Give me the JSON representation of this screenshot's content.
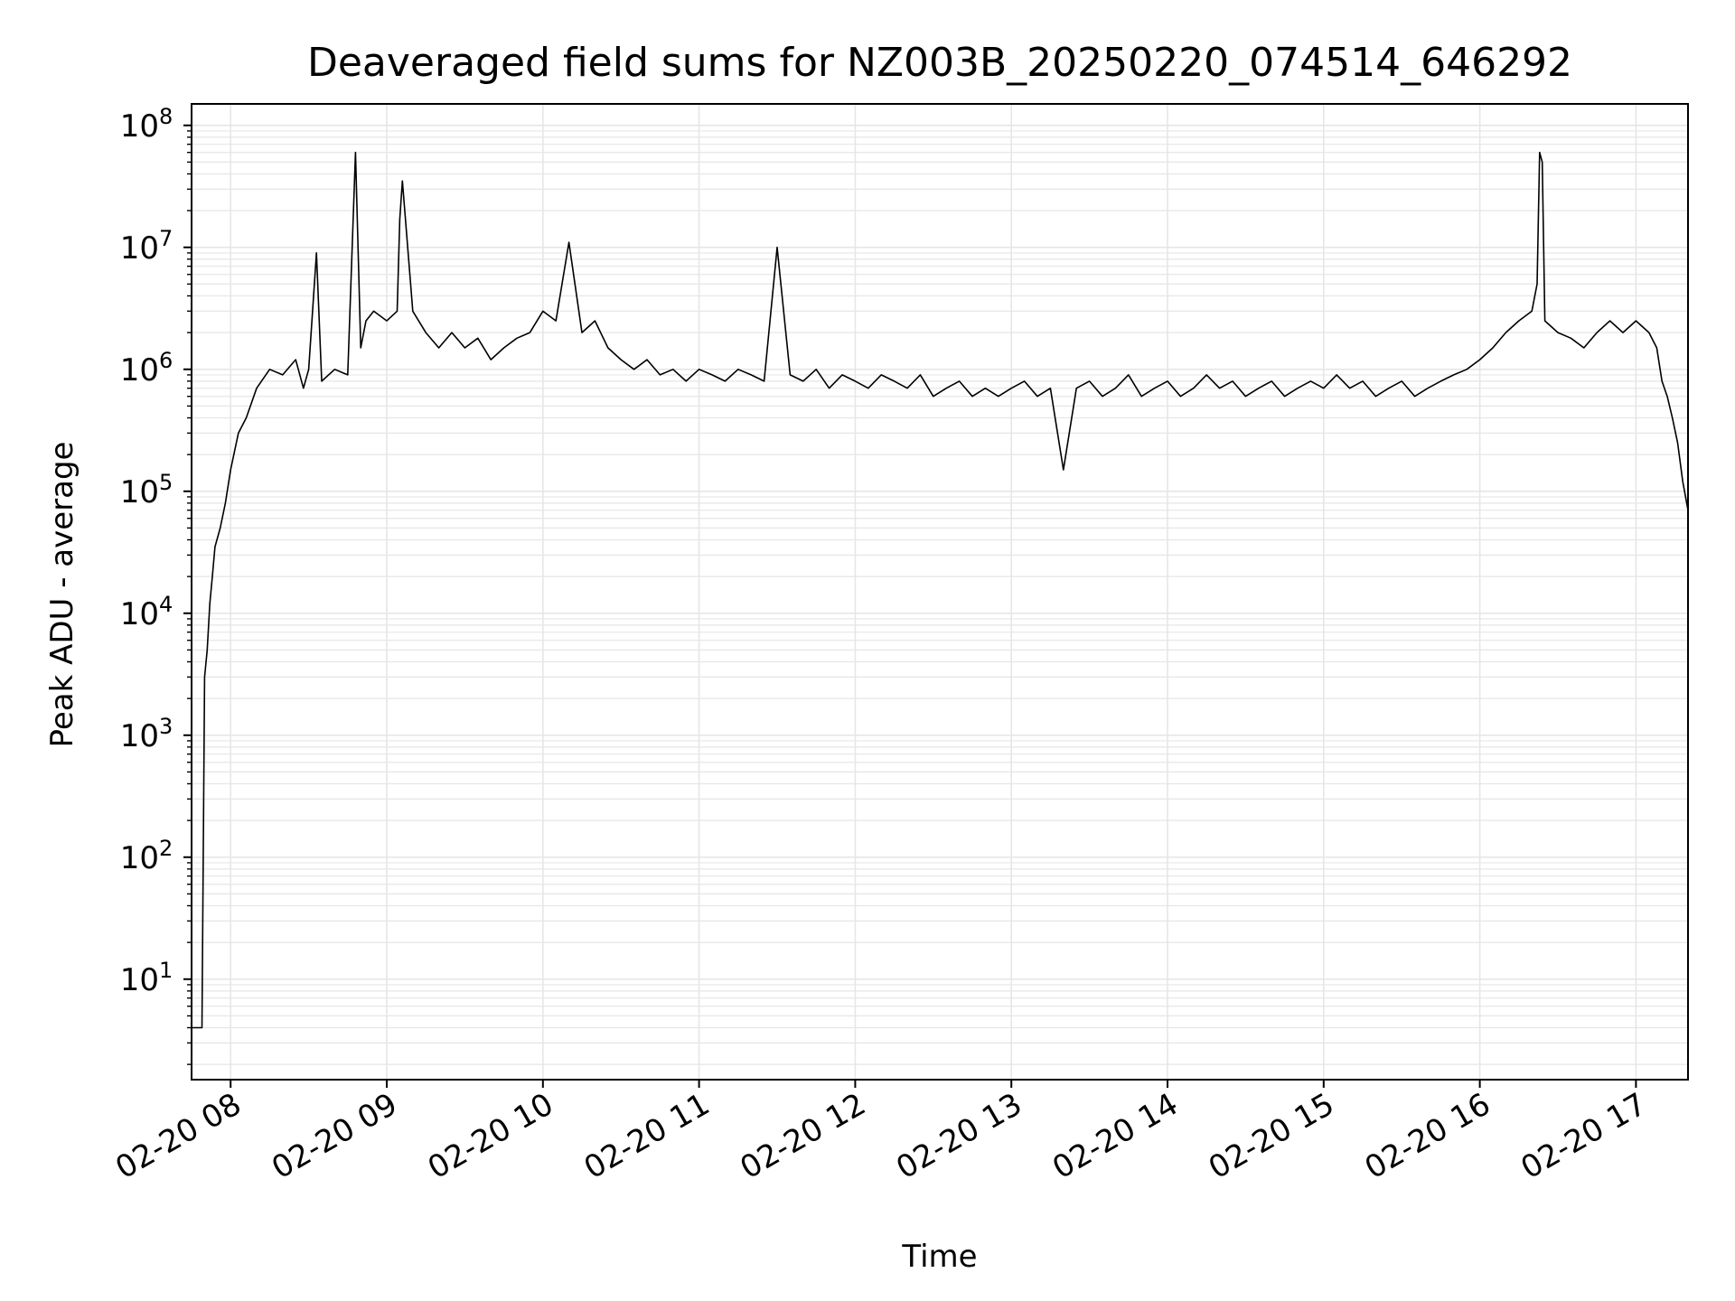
{
  "chart_data": {
    "type": "line",
    "title": "Deaveraged field sums for NZ003B_20250220_074514_646292",
    "xlabel": "Time",
    "ylabel": "Peak ADU - average",
    "yscale": "log",
    "ylim": [
      1.5,
      150000000
    ],
    "xlim": [
      "2025-02-20 07:45",
      "2025-02-20 17:20"
    ],
    "grid": true,
    "line_color": "#000000",
    "grid_color": "#e6e6e6",
    "x_ticks": [
      {
        "t": "2025-02-20 08:00",
        "label": "02-20 08"
      },
      {
        "t": "2025-02-20 09:00",
        "label": "02-20 09"
      },
      {
        "t": "2025-02-20 10:00",
        "label": "02-20 10"
      },
      {
        "t": "2025-02-20 11:00",
        "label": "02-20 11"
      },
      {
        "t": "2025-02-20 12:00",
        "label": "02-20 12"
      },
      {
        "t": "2025-02-20 13:00",
        "label": "02-20 13"
      },
      {
        "t": "2025-02-20 14:00",
        "label": "02-20 14"
      },
      {
        "t": "2025-02-20 15:00",
        "label": "02-20 15"
      },
      {
        "t": "2025-02-20 16:00",
        "label": "02-20 16"
      },
      {
        "t": "2025-02-20 17:00",
        "label": "02-20 17"
      }
    ],
    "y_ticks": [
      {
        "v": 10,
        "base": "10",
        "exp": "1"
      },
      {
        "v": 100,
        "base": "10",
        "exp": "2"
      },
      {
        "v": 1000,
        "base": "10",
        "exp": "3"
      },
      {
        "v": 10000,
        "base": "10",
        "exp": "4"
      },
      {
        "v": 100000,
        "base": "10",
        "exp": "5"
      },
      {
        "v": 1000000,
        "base": "10",
        "exp": "6"
      },
      {
        "v": 10000000,
        "base": "10",
        "exp": "7"
      },
      {
        "v": 100000000,
        "base": "10",
        "exp": "8"
      }
    ],
    "series": [
      {
        "x": [
          "2025-02-20 07:45",
          "2025-02-20 07:46",
          "2025-02-20 07:47",
          "2025-02-20 07:48",
          "2025-02-20 07:49",
          "2025-02-20 07:50",
          "2025-02-20 07:51",
          "2025-02-20 07:52",
          "2025-02-20 07:53",
          "2025-02-20 07:54",
          "2025-02-20 07:56",
          "2025-02-20 07:58",
          "2025-02-20 08:00",
          "2025-02-20 08:03",
          "2025-02-20 08:06",
          "2025-02-20 08:10",
          "2025-02-20 08:15",
          "2025-02-20 08:20",
          "2025-02-20 08:25",
          "2025-02-20 08:28",
          "2025-02-20 08:30",
          "2025-02-20 08:33",
          "2025-02-20 08:35",
          "2025-02-20 08:40",
          "2025-02-20 08:45",
          "2025-02-20 08:48",
          "2025-02-20 08:50",
          "2025-02-20 08:52",
          "2025-02-20 08:55",
          "2025-02-20 09:00",
          "2025-02-20 09:04",
          "2025-02-20 09:05",
          "2025-02-20 09:06",
          "2025-02-20 09:10",
          "2025-02-20 09:15",
          "2025-02-20 09:20",
          "2025-02-20 09:25",
          "2025-02-20 09:30",
          "2025-02-20 09:35",
          "2025-02-20 09:40",
          "2025-02-20 09:45",
          "2025-02-20 09:50",
          "2025-02-20 09:55",
          "2025-02-20 10:00",
          "2025-02-20 10:05",
          "2025-02-20 10:10",
          "2025-02-20 10:15",
          "2025-02-20 10:20",
          "2025-02-20 10:25",
          "2025-02-20 10:30",
          "2025-02-20 10:35",
          "2025-02-20 10:40",
          "2025-02-20 10:45",
          "2025-02-20 10:50",
          "2025-02-20 10:55",
          "2025-02-20 11:00",
          "2025-02-20 11:05",
          "2025-02-20 11:10",
          "2025-02-20 11:15",
          "2025-02-20 11:20",
          "2025-02-20 11:25",
          "2025-02-20 11:30",
          "2025-02-20 11:35",
          "2025-02-20 11:40",
          "2025-02-20 11:45",
          "2025-02-20 11:50",
          "2025-02-20 11:55",
          "2025-02-20 12:00",
          "2025-02-20 12:05",
          "2025-02-20 12:10",
          "2025-02-20 12:15",
          "2025-02-20 12:20",
          "2025-02-20 12:25",
          "2025-02-20 12:30",
          "2025-02-20 12:35",
          "2025-02-20 12:40",
          "2025-02-20 12:45",
          "2025-02-20 12:50",
          "2025-02-20 12:55",
          "2025-02-20 13:00",
          "2025-02-20 13:05",
          "2025-02-20 13:10",
          "2025-02-20 13:15",
          "2025-02-20 13:20",
          "2025-02-20 13:25",
          "2025-02-20 13:30",
          "2025-02-20 13:35",
          "2025-02-20 13:40",
          "2025-02-20 13:45",
          "2025-02-20 13:50",
          "2025-02-20 13:55",
          "2025-02-20 14:00",
          "2025-02-20 14:05",
          "2025-02-20 14:10",
          "2025-02-20 14:15",
          "2025-02-20 14:20",
          "2025-02-20 14:25",
          "2025-02-20 14:30",
          "2025-02-20 14:35",
          "2025-02-20 14:40",
          "2025-02-20 14:45",
          "2025-02-20 14:50",
          "2025-02-20 14:55",
          "2025-02-20 15:00",
          "2025-02-20 15:05",
          "2025-02-20 15:10",
          "2025-02-20 15:15",
          "2025-02-20 15:20",
          "2025-02-20 15:25",
          "2025-02-20 15:30",
          "2025-02-20 15:35",
          "2025-02-20 15:40",
          "2025-02-20 15:45",
          "2025-02-20 15:50",
          "2025-02-20 15:55",
          "2025-02-20 16:00",
          "2025-02-20 16:05",
          "2025-02-20 16:10",
          "2025-02-20 16:15",
          "2025-02-20 16:20",
          "2025-02-20 16:22",
          "2025-02-20 16:23",
          "2025-02-20 16:24",
          "2025-02-20 16:25",
          "2025-02-20 16:30",
          "2025-02-20 16:35",
          "2025-02-20 16:40",
          "2025-02-20 16:45",
          "2025-02-20 16:50",
          "2025-02-20 16:55",
          "2025-02-20 17:00",
          "2025-02-20 17:05",
          "2025-02-20 17:08",
          "2025-02-20 17:10",
          "2025-02-20 17:12",
          "2025-02-20 17:14",
          "2025-02-20 17:16",
          "2025-02-20 17:18",
          "2025-02-20 17:20"
        ],
        "y": [
          4,
          4,
          4,
          4,
          4,
          3000,
          5000,
          12000,
          20000,
          35000,
          50000,
          80000,
          150000,
          300000,
          400000,
          700000,
          1000000,
          900000,
          1200000,
          700000,
          1000000,
          9000000,
          800000,
          1000000,
          900000,
          60000000,
          1500000,
          2500000,
          3000000,
          2500000,
          3000000,
          17000000,
          35000000,
          3000000,
          2000000,
          1500000,
          2000000,
          1500000,
          1800000,
          1200000,
          1500000,
          1800000,
          2000000,
          3000000,
          2500000,
          11000000,
          2000000,
          2500000,
          1500000,
          1200000,
          1000000,
          1200000,
          900000,
          1000000,
          800000,
          1000000,
          900000,
          800000,
          1000000,
          900000,
          800000,
          10000000,
          900000,
          800000,
          1000000,
          700000,
          900000,
          800000,
          700000,
          900000,
          800000,
          700000,
          900000,
          600000,
          700000,
          800000,
          600000,
          700000,
          600000,
          700000,
          800000,
          600000,
          700000,
          150000,
          700000,
          800000,
          600000,
          700000,
          900000,
          600000,
          700000,
          800000,
          600000,
          700000,
          900000,
          700000,
          800000,
          600000,
          700000,
          800000,
          600000,
          700000,
          800000,
          700000,
          900000,
          700000,
          800000,
          600000,
          700000,
          800000,
          600000,
          700000,
          800000,
          900000,
          1000000,
          1200000,
          1500000,
          2000000,
          2500000,
          3000000,
          5000000,
          60000000,
          50000000,
          2500000,
          2000000,
          1800000,
          1500000,
          2000000,
          2500000,
          2000000,
          2500000,
          2000000,
          1500000,
          800000,
          600000,
          400000,
          250000,
          120000,
          70000
        ]
      }
    ]
  }
}
